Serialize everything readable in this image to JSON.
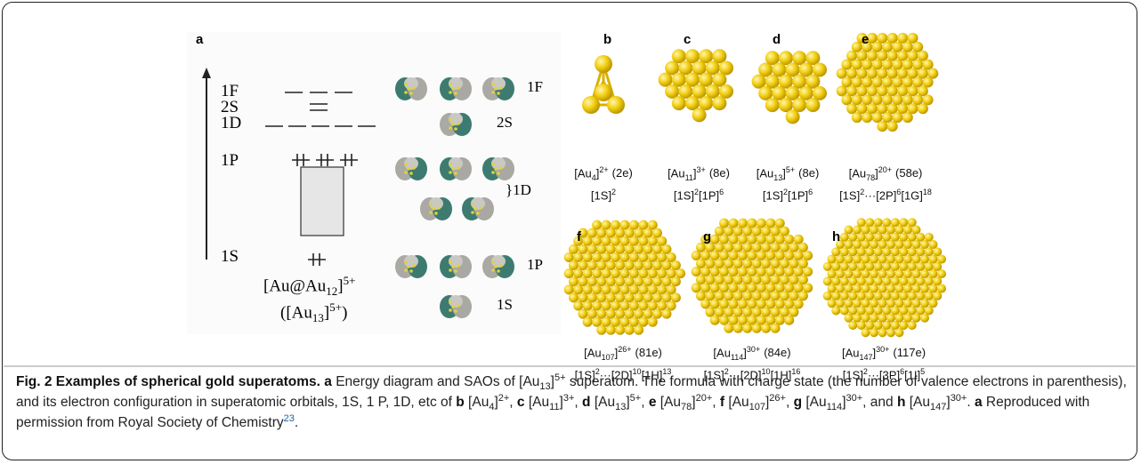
{
  "panel_a": {
    "label": "a",
    "levels": [
      "1F",
      "2S",
      "1D",
      "1P",
      "1S"
    ],
    "orbital_labels": [
      "1F",
      "2S",
      "}1D",
      "1P",
      "1S"
    ],
    "formula": {
      "open": "[Au@Au",
      "sub": "12",
      "close": "]",
      "sup": "5+"
    },
    "formula_alt": {
      "open": "([Au",
      "sub": "13",
      "close": "]",
      "sup": "5+",
      "end": ")"
    }
  },
  "clusters": [
    {
      "label": "b",
      "formula": {
        "open": "[Au",
        "sub": "4",
        "close": "]",
        "sup": "2+",
        "electrons": "(2e)"
      },
      "config": [
        {
          "t": "[1S]",
          "sup": "2"
        }
      ]
    },
    {
      "label": "c",
      "formula": {
        "open": "[Au",
        "sub": "11",
        "close": "]",
        "sup": "3+",
        "electrons": "(8e)"
      },
      "config": [
        {
          "t": "[1S]",
          "sup": "2"
        },
        {
          "t": "[1P]",
          "sup": "6"
        }
      ]
    },
    {
      "label": "d",
      "formula": {
        "open": "[Au",
        "sub": "13",
        "close": "]",
        "sup": "5+",
        "electrons": "(8e)"
      },
      "config": [
        {
          "t": "[1S]",
          "sup": "2"
        },
        {
          "t": "[1P]",
          "sup": "6"
        }
      ]
    },
    {
      "label": "e",
      "formula": {
        "open": "[Au",
        "sub": "78",
        "close": "]",
        "sup": "20+",
        "electrons": "(58e)"
      },
      "config": [
        {
          "t": "[1S]",
          "sup": "2"
        },
        {
          "t": "···[2P]",
          "sup": "6"
        },
        {
          "t": "[1G]",
          "sup": "18"
        }
      ]
    },
    {
      "label": "f",
      "formula": {
        "open": "[Au",
        "sub": "107",
        "close": "]",
        "sup": "26+",
        "electrons": "(81e)"
      },
      "config": [
        {
          "t": "[1S]",
          "sup": "2"
        },
        {
          "t": "···[2D]",
          "sup": "10"
        },
        {
          "t": "[1H]",
          "sup": "13"
        }
      ]
    },
    {
      "label": "g",
      "formula": {
        "open": "[Au",
        "sub": "114",
        "close": "]",
        "sup": "30+",
        "electrons": "(84e)"
      },
      "config": [
        {
          "t": "[1S]",
          "sup": "2"
        },
        {
          "t": "···[2D]",
          "sup": "10"
        },
        {
          "t": "[1H]",
          "sup": "16"
        }
      ]
    },
    {
      "label": "h",
      "formula": {
        "open": "[Au",
        "sub": "147",
        "close": "]",
        "sup": "30+",
        "electrons": "(117e)"
      },
      "config": [
        {
          "t": "[1S]",
          "sup": "2"
        },
        {
          "t": "···[3P]",
          "sup": "6"
        },
        {
          "t": "[1I]",
          "sup": "5"
        }
      ]
    }
  ],
  "caption": [
    "Fig. 2 Examples of spherical gold superatoms.",
    "a",
    "Energy diagram and SAOs of [Au",
    "13",
    "]",
    "5+",
    "superatom. The formula with charge state (the number of valence electrons in parenthesis), and its electron configuration in superatomic orbitals, 1S, 1 P, 1D, etc of",
    "b",
    "[Au",
    "4",
    "]",
    "2+",
    ",",
    "c",
    "[Au",
    "11",
    "]",
    "3+",
    ",",
    "d",
    "[Au",
    "13",
    "]",
    "5+",
    ",",
    "e",
    "[Au",
    "78",
    "]",
    "20+",
    ",",
    "f",
    "[Au",
    "107",
    "]",
    "26+",
    ",",
    "g",
    "[Au",
    "114",
    "]",
    "30+",
    ", and",
    "h",
    "[Au",
    "147",
    "]",
    "30+",
    ".",
    "a",
    "Reproduced with permission from Royal Society of Chemistry",
    "23",
    "."
  ]
}
